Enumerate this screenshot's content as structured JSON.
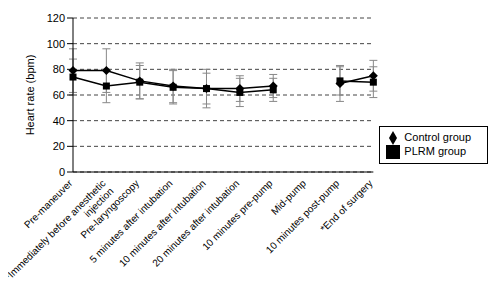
{
  "chart_data": {
    "type": "line",
    "y_label": "Heart rate (bpm)",
    "categories": [
      "Pre-maneuver",
      "*Immediately before anesthetic injection",
      "Pre-laryngoscopy",
      "5 minutes after intubation",
      "10 minutes after intubation",
      "20 minutes after intubation",
      "10 minutes pre-pump",
      "Mid-pump",
      "10 minutes post-pump",
      "*End of surgery"
    ],
    "series": [
      {
        "name": "Control group",
        "color": "#000000",
        "marker": "diamond",
        "values": [
          79,
          79,
          71,
          67,
          65,
          65,
          67,
          null,
          69,
          75
        ],
        "error": [
          17,
          17,
          14,
          13,
          12,
          10,
          9,
          null,
          14,
          12
        ]
      },
      {
        "name": "PLRM group",
        "color": "#000000",
        "marker": "square",
        "values": [
          74,
          67,
          70,
          66,
          65,
          62,
          64,
          null,
          71,
          70
        ],
        "error": [
          14,
          13,
          13,
          13,
          15,
          11,
          9,
          null,
          11,
          12
        ]
      }
    ],
    "ylim": [
      0,
      120
    ],
    "yticks": [
      0,
      20,
      40,
      60,
      80,
      100,
      120
    ],
    "grid": true,
    "legend": "right"
  }
}
